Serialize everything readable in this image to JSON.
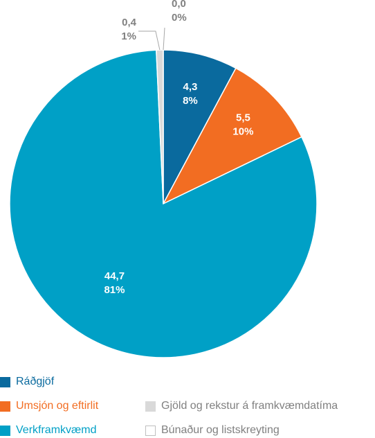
{
  "chart_data": {
    "type": "pie",
    "slices": [
      {
        "name": "Ráðgjöf",
        "value": 4.3,
        "value_label": "4,3",
        "pct_label": "8%",
        "color": "#0a6a9e",
        "text_color": "#ffffff"
      },
      {
        "name": "Umsjón og eftirlit",
        "value": 5.5,
        "value_label": "5,5",
        "pct_label": "10%",
        "color": "#f26d22",
        "text_color": "#ffffff"
      },
      {
        "name": "Verkframkvæmd",
        "value": 44.7,
        "value_label": "44,7",
        "pct_label": "81%",
        "color": "#00a0c6",
        "text_color": "#ffffff"
      },
      {
        "name": "Gjöld og rekstur á framkvæmdatíma",
        "value": 0.4,
        "value_label": "0,4",
        "pct_label": "1%",
        "color": "#d9d9d9",
        "text_color": "#808080"
      },
      {
        "name": "Búnaður og listskreyting",
        "value": 0.0,
        "value_label": "0,0",
        "pct_label": "0%",
        "color": "#ffffff",
        "text_color": "#808080"
      }
    ],
    "legend": {
      "placement": "bottom",
      "items": [
        {
          "label": "Ráðgjöf",
          "color": "#0a6a9e",
          "text_color": "#0a6a9e"
        },
        {
          "label": "Umsjón og eftirlit",
          "color": "#f26d22",
          "text_color": "#f26d22"
        },
        {
          "label": "Verkframkvæmd",
          "color": "#00a0c6",
          "text_color": "#00a0c6"
        },
        {
          "label": "Gjöld og rekstur á framkvæmdatíma",
          "color": "#d9d9d9",
          "text_color": "#808080"
        },
        {
          "label": "Búnaður og listskreyting",
          "color": "#ffffff",
          "text_color": "#808080"
        }
      ]
    }
  }
}
